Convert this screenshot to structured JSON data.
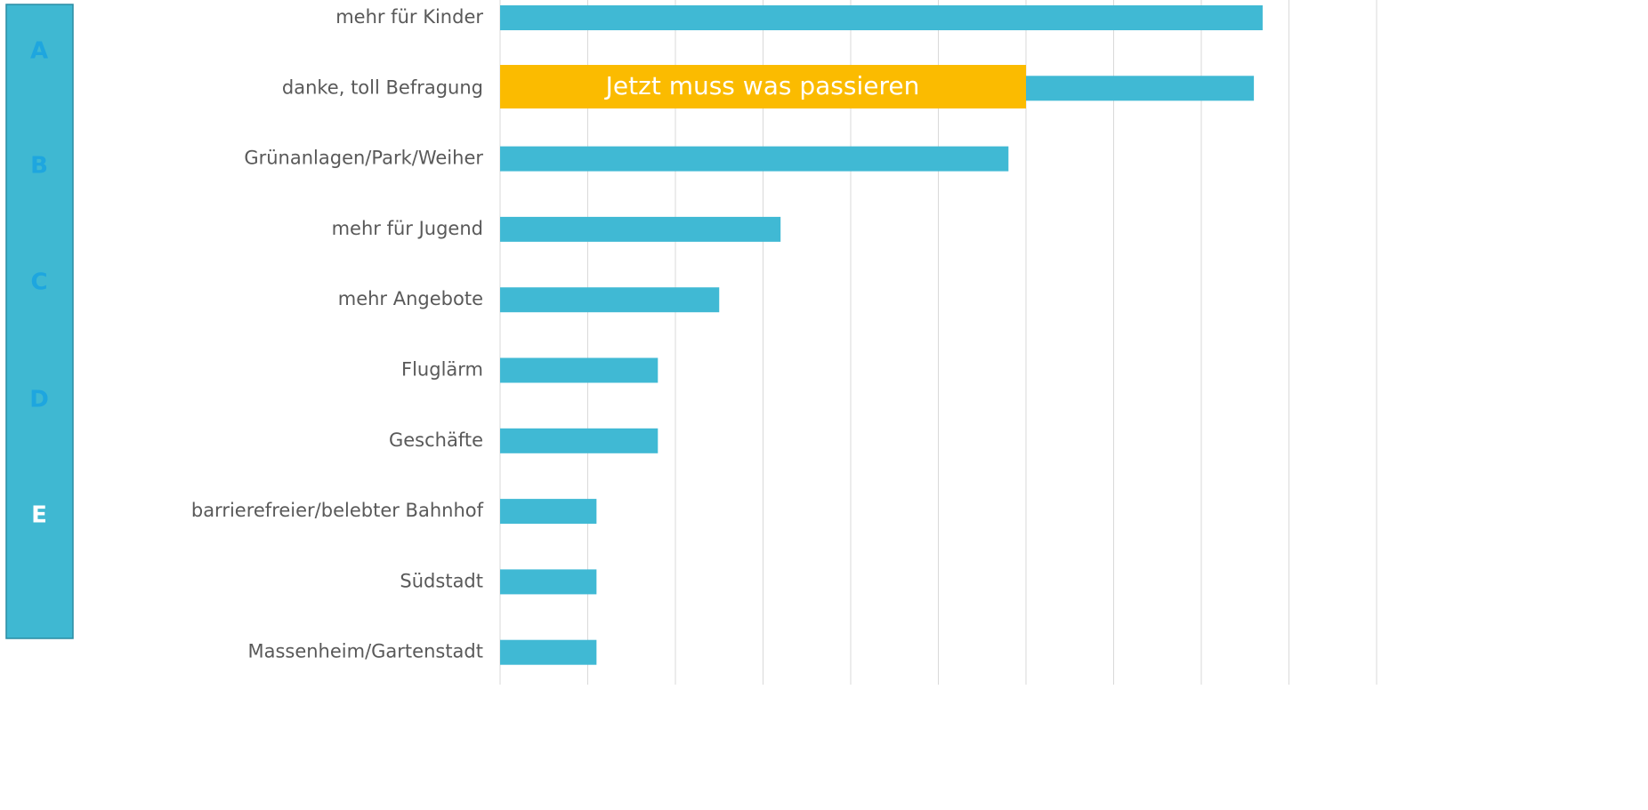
{
  "sidebar": {
    "letters": [
      "A",
      "B",
      "C",
      "D",
      "E"
    ]
  },
  "callout": "Jetzt muss was passieren",
  "chart_data": {
    "type": "barh",
    "categories": [
      "mehr für Kinder",
      "danke, toll Befragung",
      "Grünanlagen/Park/Weiher",
      "mehr für Jugend",
      "mehr Angebote",
      "Fluglärm",
      "Geschäfte",
      "barrierefreier/belebter Bahnhof",
      "Südstadt",
      "Massenheim/Gartenstadt"
    ],
    "values": [
      8.7,
      8.6,
      5.8,
      3.2,
      2.5,
      1.8,
      1.8,
      1.1,
      1.1,
      1.1
    ],
    "color": "#40b9d4",
    "xlim": [
      0,
      10
    ],
    "xticks": [
      0,
      1,
      2,
      3,
      4,
      5,
      6,
      7,
      8,
      9,
      10
    ],
    "grid": true
  }
}
